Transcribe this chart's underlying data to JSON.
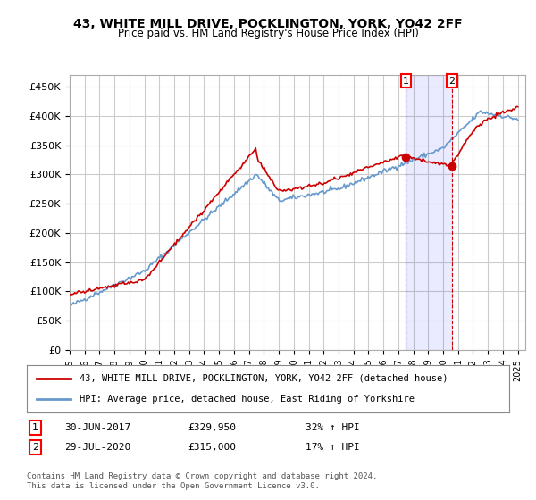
{
  "title": "43, WHITE MILL DRIVE, POCKLINGTON, YORK, YO42 2FF",
  "subtitle": "Price paid vs. HM Land Registry's House Price Index (HPI)",
  "ylabel_ticks": [
    "£0",
    "£50K",
    "£100K",
    "£150K",
    "£200K",
    "£250K",
    "£300K",
    "£350K",
    "£400K",
    "£450K"
  ],
  "ytick_values": [
    0,
    50000,
    100000,
    150000,
    200000,
    250000,
    300000,
    350000,
    400000,
    450000
  ],
  "ylim": [
    0,
    470000
  ],
  "xlim_start": 1995.0,
  "xlim_end": 2025.5,
  "background_color": "#ffffff",
  "plot_bg_color": "#ffffff",
  "grid_color": "#cccccc",
  "annotation1": {
    "label": "1",
    "date_x": 2017.5,
    "price": 329950,
    "pct": "32%",
    "date_str": "30-JUN-2017",
    "price_str": "£329,950"
  },
  "annotation2": {
    "label": "2",
    "date_x": 2020.58,
    "price": 315000,
    "pct": "17%",
    "date_str": "29-JUL-2020",
    "price_str": "£315,000"
  },
  "legend_label_red": "43, WHITE MILL DRIVE, POCKLINGTON, YORK, YO42 2FF (detached house)",
  "legend_label_blue": "HPI: Average price, detached house, East Riding of Yorkshire",
  "footer": "Contains HM Land Registry data © Crown copyright and database right 2024.\nThis data is licensed under the Open Government Licence v3.0.",
  "table_rows": [
    [
      "1",
      "30-JUN-2017",
      "£329,950",
      "32% ↑ HPI"
    ],
    [
      "2",
      "29-JUL-2020",
      "£315,000",
      "17% ↑ HPI"
    ]
  ],
  "red_color": "#cc0000",
  "blue_color": "#6699cc",
  "marker_color": "#cc0000"
}
